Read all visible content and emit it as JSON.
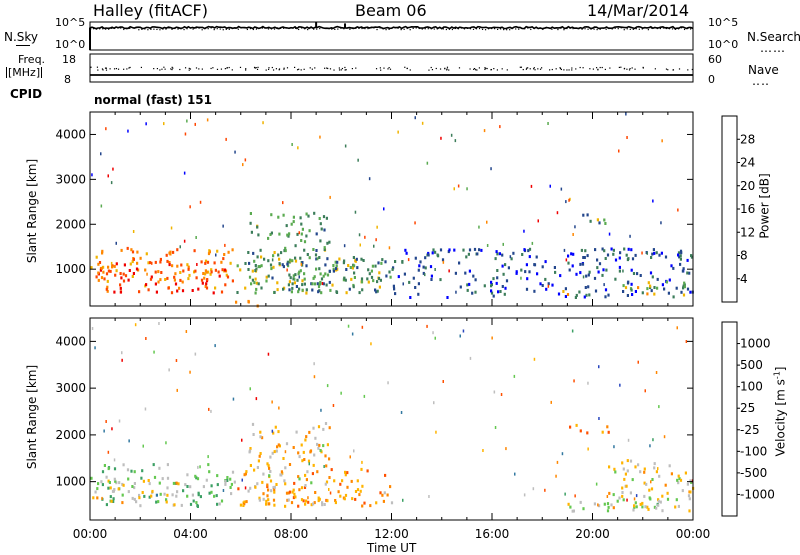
{
  "header": {
    "station": "Halley (fitACF)",
    "beam": "Beam 06",
    "date": "14/Mar/2014"
  },
  "chart_data": [
    {
      "type": "line",
      "panel": "noise",
      "left_label": "N.Sky",
      "right_label": "N.Search",
      "left_ticks": [
        "10^5",
        "10^0"
      ],
      "right_ticks": [
        "10^5",
        "10^0"
      ],
      "xlim": [
        "00:00",
        "24:00"
      ],
      "series": [
        {
          "name": "N.Sky",
          "style": "solid",
          "values_level": 0.8
        },
        {
          "name": "N.Search",
          "style": "dotted",
          "values_level": 0.78
        }
      ],
      "spikes": [
        {
          "t": 9.0,
          "level": 1.0
        },
        {
          "t": 10.15,
          "level": 0.95
        }
      ]
    },
    {
      "type": "line",
      "panel": "frequency",
      "left_label_1": "Freq.",
      "left_label_2": "[MHz]",
      "right_label": "Nave",
      "left_ticks": [
        "18",
        "8"
      ],
      "right_ticks": [
        "60",
        "0"
      ],
      "xlim": [
        "00:00",
        "24:00"
      ],
      "series": [
        {
          "name": "Freq.",
          "style": "solid",
          "unit": "MHz",
          "value": 10.5
        },
        {
          "name": "Nave",
          "style": "dotted",
          "value": 33
        }
      ]
    },
    {
      "type": "text",
      "panel": "cpid",
      "label": "CPID",
      "text": "normal (fast) 151"
    },
    {
      "type": "heatmap",
      "panel": "power",
      "ylabel": "Slant Range [km]",
      "yticks": [
        1000,
        2000,
        3000,
        4000
      ],
      "ylim": [
        180,
        4500
      ],
      "xlim_hours": [
        0,
        24
      ],
      "colorbar": {
        "label": "Power [dB]",
        "ticks": [
          "4",
          "8",
          "12",
          "16",
          "20",
          "24",
          "28"
        ],
        "range": [
          0,
          30
        ],
        "colors": [
          "#0000ff",
          "#23468c",
          "#3c7d5a",
          "#5aaa50",
          "#f0b400",
          "#ff8700",
          "#ff4600",
          "#f00000"
        ]
      },
      "regions": [
        {
          "t0": 0.0,
          "t1": 5.8,
          "r0": 600,
          "r1": 1500,
          "level": 0.75
        },
        {
          "t0": 0.2,
          "t1": 5.5,
          "r0": 500,
          "r1": 1200,
          "level": 0.9
        },
        {
          "t0": 5.8,
          "t1": 11.5,
          "r0": 500,
          "r1": 1300,
          "level": 0.45
        },
        {
          "t0": 6.2,
          "t1": 9.5,
          "r0": 500,
          "r1": 2300,
          "level": 0.35
        },
        {
          "t0": 8.0,
          "t1": 12.5,
          "r0": 500,
          "r1": 1300,
          "level": 0.25
        },
        {
          "t0": 12.0,
          "t1": 24.0,
          "r0": 400,
          "r1": 1500,
          "level": 0.15
        },
        {
          "t0": 19.0,
          "t1": 21.0,
          "r0": 2050,
          "r1": 2250,
          "level": 0.35
        },
        {
          "t0": 21.0,
          "t1": 24.0,
          "r0": 450,
          "r1": 750,
          "level": 0.5
        },
        {
          "t0": 18.5,
          "t1": 19.5,
          "r0": 450,
          "r1": 550,
          "level": 0.55
        },
        {
          "t0": 5.5,
          "t1": 7.0,
          "r0": 200,
          "r1": 350,
          "level": 0.65
        }
      ]
    },
    {
      "type": "heatmap",
      "panel": "velocity",
      "ylabel": "Slant Range [km]",
      "yticks": [
        1000,
        2000,
        3000,
        4000
      ],
      "ylim": [
        180,
        4500
      ],
      "xlim_hours": [
        0,
        24
      ],
      "xticks": [
        "00:00",
        "04:00",
        "08:00",
        "12:00",
        "16:00",
        "20:00",
        "00:00"
      ],
      "xlabel": "Time UT",
      "colorbar": {
        "label": "Velocity [m s^-1]",
        "ticks": [
          "1000",
          "500",
          "100",
          "25",
          "-25",
          "-100",
          "-500",
          "-1000"
        ],
        "colors": [
          "#2846be",
          "#3278a0",
          "#3ca064",
          "#64c850",
          "#bebebe",
          "#ffb400",
          "#ff8700",
          "#ff5000",
          "#f00000"
        ]
      },
      "regions": [
        {
          "t0": 0.0,
          "t1": 5.8,
          "r0": 500,
          "r1": 1400,
          "level": 0.35
        },
        {
          "t0": 0.0,
          "t1": 3.5,
          "r0": 500,
          "r1": 1100,
          "level": 0.55
        },
        {
          "t0": 5.8,
          "t1": 12.0,
          "r0": 500,
          "r1": 1300,
          "level": 0.7
        },
        {
          "t0": 6.3,
          "t1": 9.5,
          "r0": 500,
          "r1": 2300,
          "level": 0.6
        },
        {
          "t0": 19.0,
          "t1": 24.0,
          "r0": 400,
          "r1": 700,
          "level": 0.45
        },
        {
          "t0": 19.0,
          "t1": 20.8,
          "r0": 2050,
          "r1": 2250,
          "level": 0.75
        },
        {
          "t0": 20.5,
          "t1": 24.0,
          "r0": 400,
          "r1": 1500,
          "level": 0.55
        }
      ]
    }
  ]
}
